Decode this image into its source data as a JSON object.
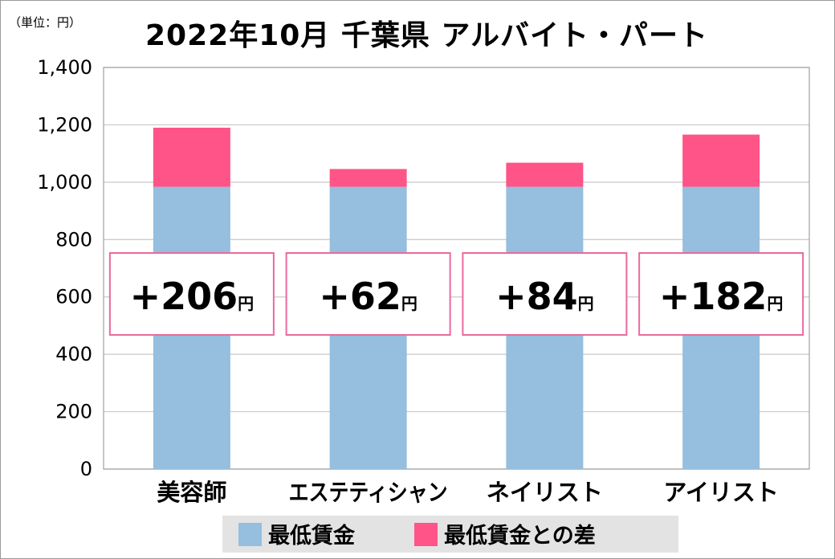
{
  "chart_data": {
    "type": "bar",
    "stacked": true,
    "title": "2022年10月 千葉県 アルバイト・パート",
    "unit_label": "（単位：円）",
    "categories": [
      "美容師",
      "エステティシャン",
      "ネイリスト",
      "アイリスト"
    ],
    "series": [
      {
        "name": "最低賃金",
        "values": [
          984,
          984,
          984,
          984
        ]
      },
      {
        "name": "最低賃金との差",
        "values": [
          206,
          62,
          84,
          182
        ]
      }
    ],
    "annotations": [
      "+206",
      "+62",
      "+84",
      "+182"
    ],
    "annotation_unit": "円",
    "ylim": [
      0,
      1400
    ],
    "yticks": [
      0,
      200,
      400,
      600,
      800,
      1000,
      1200,
      1400
    ],
    "ytick_labels": [
      "0",
      "200",
      "400",
      "600",
      "800",
      "1,000",
      "1,200",
      "1,400"
    ],
    "grid": true,
    "legend_position": "bottom",
    "colors": {
      "base": "#95bedf",
      "diff": "#ff5488",
      "box_border": "#e96a9c",
      "grid": "#c8c8c8"
    }
  }
}
